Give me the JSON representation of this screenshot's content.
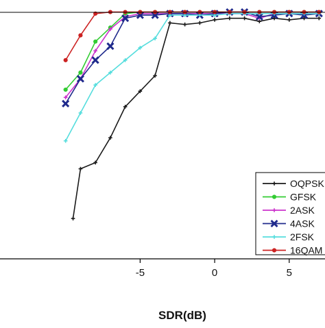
{
  "chart_data": {
    "type": "line",
    "title": "",
    "xlabel": "SDR(dB)",
    "ylabel": "",
    "xlim": [
      -14.4,
      7.4
    ],
    "ylim": [
      0.2,
      1.025
    ],
    "x_ticks": [
      {
        "value": -5,
        "label": "-5"
      },
      {
        "value": 0,
        "label": "0"
      },
      {
        "value": 5,
        "label": "5"
      }
    ],
    "grid": false,
    "legend": {
      "position": "bottom-right",
      "entries": [
        "OQPSK",
        "GFSK",
        "2ASK",
        "4ASK",
        "2FSK",
        "16QAM"
      ]
    },
    "series": [
      {
        "name": "OQPSK",
        "color": "#1a1a1a",
        "marker": "plus",
        "x": [
          -9.5,
          -9,
          -8,
          -7,
          -6,
          -5,
          -4,
          -3,
          -2,
          -1,
          0,
          1,
          2,
          3,
          4,
          5,
          6,
          7
        ],
        "y": [
          0.33,
          0.49,
          0.51,
          0.59,
          0.69,
          0.74,
          0.79,
          0.96,
          0.955,
          0.96,
          0.97,
          0.975,
          0.975,
          0.965,
          0.975,
          0.97,
          0.975,
          0.975
        ]
      },
      {
        "name": "GFSK",
        "color": "#33cc33",
        "marker": "dot",
        "x": [
          -10,
          -9,
          -8,
          -7,
          -6,
          -5,
          -4,
          -3,
          -2,
          -1,
          0,
          1,
          2,
          3,
          4,
          5,
          6,
          7
        ],
        "y": [
          0.745,
          0.8,
          0.9,
          0.945,
          0.99,
          0.995,
          0.995,
          0.995,
          0.995,
          0.995,
          0.995,
          0.995,
          0.995,
          0.995,
          0.995,
          0.995,
          0.995,
          0.995
        ]
      },
      {
        "name": "2ASK",
        "color": "#cc33cc",
        "marker": "plus",
        "x": [
          -10,
          -9,
          -8,
          -7,
          -6,
          -5,
          -4,
          -3,
          -2,
          -1,
          0,
          1,
          2,
          3,
          4,
          5,
          6,
          7
        ],
        "y": [
          0.72,
          0.78,
          0.87,
          0.94,
          0.98,
          0.99,
          0.99,
          0.99,
          0.99,
          0.99,
          0.99,
          0.99,
          0.99,
          0.975,
          0.99,
          0.99,
          0.99,
          0.99
        ]
      },
      {
        "name": "4ASK",
        "color": "#1f2a8c",
        "marker": "x",
        "x": [
          -10,
          -9,
          -8,
          -7,
          -6,
          -5,
          -4,
          -3,
          -2,
          -1,
          0,
          1,
          2,
          3,
          4,
          5,
          6,
          7
        ],
        "y": [
          0.7,
          0.78,
          0.84,
          0.885,
          0.975,
          0.985,
          0.985,
          0.99,
          0.99,
          0.985,
          0.99,
          0.995,
          0.995,
          0.98,
          0.985,
          0.99,
          0.985,
          0.99
        ]
      },
      {
        "name": "2FSK",
        "color": "#55dddd",
        "marker": "plus",
        "x": [
          -10,
          -9,
          -8,
          -7,
          -6,
          -5,
          -4,
          -3,
          -2,
          -1,
          0,
          1,
          2,
          3,
          4,
          5,
          6,
          7
        ],
        "y": [
          0.58,
          0.67,
          0.76,
          0.8,
          0.84,
          0.88,
          0.91,
          0.985,
          0.985,
          0.985,
          0.985,
          0.99,
          0.99,
          0.99,
          0.99,
          0.99,
          0.99,
          0.99
        ]
      },
      {
        "name": "16QAM",
        "color": "#cc2222",
        "marker": "dot",
        "x": [
          -10,
          -9,
          -8,
          -7,
          -6,
          -5,
          -4,
          -3,
          -2,
          -1,
          0,
          1,
          2,
          3,
          4,
          5,
          6,
          7
        ],
        "y": [
          0.84,
          0.92,
          0.99,
          0.995,
          0.995,
          0.995,
          0.995,
          0.995,
          0.995,
          0.995,
          0.995,
          0.995,
          0.995,
          0.995,
          0.995,
          0.995,
          0.995,
          0.995
        ]
      }
    ]
  }
}
